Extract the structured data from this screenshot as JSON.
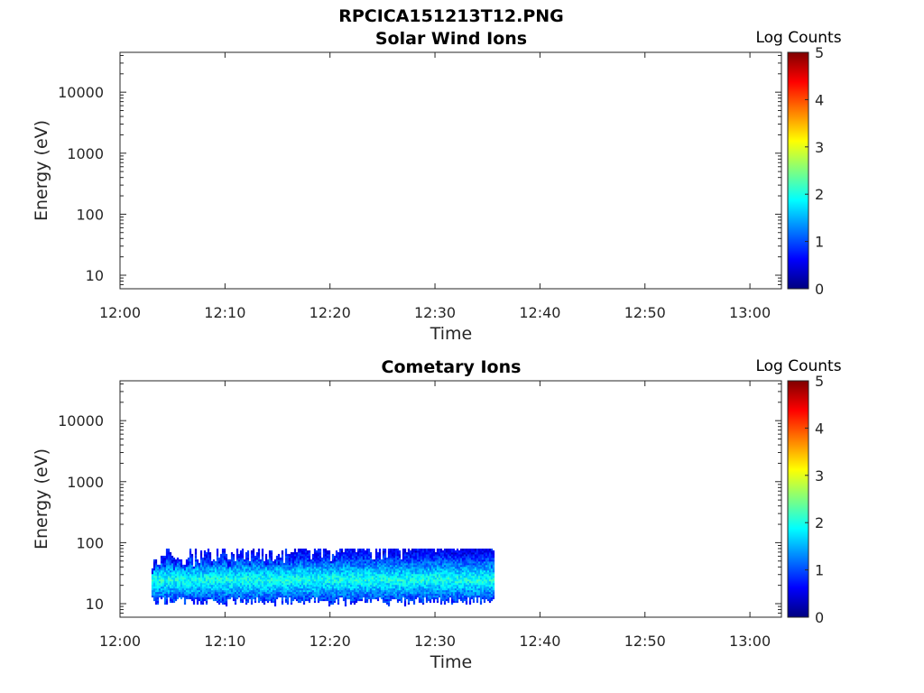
{
  "figure_title": "RPCICA151213T12.PNG",
  "colormap": {
    "name": "jet",
    "stops": [
      "#00007f",
      "#0000ff",
      "#007fff",
      "#00ffff",
      "#7fff7f",
      "#ffff00",
      "#ff7f00",
      "#ff0000",
      "#7f0000"
    ]
  },
  "chart_data": [
    {
      "type": "heatmap",
      "title": "Solar Wind Ions",
      "xlabel": "Time",
      "ylabel": "Energy (eV)",
      "x_ticks": [
        "12:00",
        "12:10",
        "12:20",
        "12:30",
        "12:40",
        "12:50",
        "13:00"
      ],
      "xlim": [
        "12:00",
        "13:03"
      ],
      "y_scale": "log",
      "y_ticks": [
        "10",
        "100",
        "1000",
        "10000"
      ],
      "ylim": [
        6,
        45000
      ],
      "colorbar": {
        "label": "Log Counts",
        "ticks": [
          "0",
          "1",
          "2",
          "3",
          "4",
          "5"
        ],
        "range": [
          0,
          5
        ]
      },
      "data": []
    },
    {
      "type": "heatmap",
      "title": "Cometary Ions",
      "xlabel": "Time",
      "ylabel": "Energy (eV)",
      "x_ticks": [
        "12:00",
        "12:10",
        "12:20",
        "12:30",
        "12:40",
        "12:50",
        "13:00"
      ],
      "xlim": [
        "12:00",
        "13:03"
      ],
      "y_scale": "log",
      "y_ticks": [
        "10",
        "100",
        "1000",
        "10000"
      ],
      "ylim": [
        6,
        45000
      ],
      "colorbar": {
        "label": "Log Counts",
        "ticks": [
          "0",
          "1",
          "2",
          "3",
          "4",
          "5"
        ],
        "range": [
          0,
          5
        ]
      },
      "data": {
        "time_start": "12:03",
        "time_end": "12:35:30",
        "energy_max": 80,
        "band_low_energy": 11,
        "band_high_energy": 40,
        "peak_energy": 25,
        "peak_log_counts": 2.0,
        "typical_log_counts": 1.3
      }
    }
  ]
}
